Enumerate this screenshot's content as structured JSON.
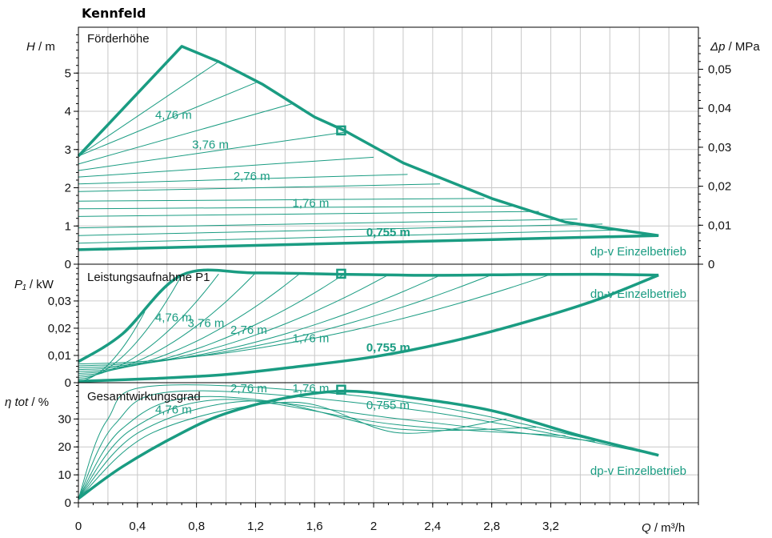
{
  "title": "Kennfeld",
  "colors": {
    "curve": "#1a9c82",
    "axis": "#000000",
    "grid": "#c8c8c8"
  },
  "x_axis": {
    "label_var": "Q",
    "label_unit": " / m³/h",
    "ticks": [
      "0",
      "0,4",
      "0,8",
      "1,2",
      "1,6",
      "2",
      "2,4",
      "2,8",
      "3,2"
    ],
    "range": [
      0,
      4.2
    ]
  },
  "chart_data": [
    {
      "type": "line",
      "panel": "head",
      "panel_title": "Förderhöhe",
      "ylabel_var": "H",
      "ylabel_unit": " / m",
      "y2label_var": "Δp",
      "y2label_unit": " / MPa",
      "ylim": [
        0,
        6.2
      ],
      "yticks": [
        "0",
        "1",
        "2",
        "3",
        "4",
        "5"
      ],
      "y2ticks": [
        "0",
        "0,01",
        "0,02",
        "0,03",
        "0,04",
        "0,05"
      ],
      "max_curve": {
        "x": [
          0,
          0.7,
          0.95,
          1.25,
          1.6,
          1.8,
          2.2,
          2.8,
          3.3,
          3.93
        ],
        "y": [
          2.83,
          5.7,
          5.3,
          4.7,
          3.85,
          3.5,
          2.65,
          1.72,
          1.1,
          0.75
        ]
      },
      "min_curve": {
        "x": [
          0,
          3.93
        ],
        "y": [
          0.38,
          0.75
        ]
      },
      "control_lines": [
        {
          "y0": 0.38,
          "x1": 3.93,
          "y1": 0.75
        },
        {
          "y0": 0.55,
          "x1": 3.72,
          "y1": 0.9
        },
        {
          "y0": 0.75,
          "x1": 3.55,
          "y1": 1.05
        },
        {
          "y0": 0.95,
          "x1": 3.38,
          "y1": 1.18
        },
        {
          "y0": 1.25,
          "x1": 3.12,
          "y1": 1.38
        },
        {
          "y0": 1.45,
          "x1": 2.95,
          "y1": 1.52
        },
        {
          "y0": 1.65,
          "x1": 2.75,
          "y1": 1.72
        },
        {
          "y0": 1.9,
          "x1": 2.45,
          "y1": 2.1
        },
        {
          "y0": 2.1,
          "x1": 2.23,
          "y1": 2.35
        },
        {
          "y0": 2.28,
          "x1": 2.0,
          "y1": 2.8
        },
        {
          "y0": 2.45,
          "x1": 1.8,
          "y1": 3.45
        },
        {
          "y0": 2.62,
          "x1": 1.45,
          "y1": 4.2
        },
        {
          "y0": 2.83,
          "x1": 1.22,
          "y1": 4.78
        },
        {
          "y0": 2.83,
          "x1": 0.95,
          "y1": 5.3
        }
      ],
      "curve_labels": [
        {
          "text": "4,76 m",
          "x": 0.52,
          "y": 3.8
        },
        {
          "text": "3,76 m",
          "x": 0.77,
          "y": 3.03
        },
        {
          "text": "2,76 m",
          "x": 1.05,
          "y": 2.2
        },
        {
          "text": "1,76 m",
          "x": 1.45,
          "y": 1.5
        },
        {
          "text": "0,755 m",
          "x": 1.95,
          "y": 0.73,
          "bold": true
        }
      ],
      "mode_label": "dp-v Einzelbetrieb",
      "operating_point": {
        "x": 1.78,
        "y": 3.5
      }
    },
    {
      "type": "line",
      "panel": "power",
      "panel_title": "Leistungsaufnahme P1",
      "ylabel_var": "P₁",
      "ylabel_unit": " / kW",
      "ylim": [
        0,
        0.0435
      ],
      "yticks": [
        "0",
        "0,01",
        "0,02",
        "0,03"
      ],
      "max_curve": {
        "x": [
          0,
          0.3,
          0.7,
          1.2,
          1.8,
          2.4,
          3.0,
          3.5,
          3.93
        ],
        "y": [
          0.0077,
          0.018,
          0.0395,
          0.0403,
          0.0398,
          0.0394,
          0.0397,
          0.0398,
          0.0395
        ]
      },
      "min_curve": {
        "x": [
          0,
          0.5,
          1.0,
          1.5,
          2.0,
          2.5,
          3.0,
          3.5,
          3.93
        ],
        "y": [
          0.0005,
          0.0015,
          0.003,
          0.006,
          0.0095,
          0.0148,
          0.0218,
          0.0302,
          0.0395
        ]
      },
      "curve_labels": [
        {
          "text": "4,76 m",
          "x": 0.52,
          "y": 0.0225
        },
        {
          "text": "3,76 m",
          "x": 0.74,
          "y": 0.0205
        },
        {
          "text": "2,76 m",
          "x": 1.03,
          "y": 0.018
        },
        {
          "text": "1,76 m",
          "x": 1.45,
          "y": 0.0148
        },
        {
          "text": "0,755 m",
          "x": 1.95,
          "y": 0.0115,
          "bold": true
        }
      ],
      "mode_label": "dp-v Einzelbetrieb",
      "operating_point": {
        "x": 1.78,
        "y": 0.04
      }
    },
    {
      "type": "line",
      "panel": "efficiency",
      "panel_title": "Gesamtwirkungsgrad",
      "ylabel_var": "η tot",
      "ylabel_unit": " / %",
      "ylim": [
        0,
        43
      ],
      "yticks": [
        "0",
        "10",
        "20",
        "30"
      ],
      "max_curve": {
        "x": [
          0,
          0.3,
          0.7,
          1.0,
          1.4,
          1.8,
          2.2,
          2.8,
          3.4,
          3.93
        ],
        "y": [
          1.5,
          13,
          25,
          32,
          37.5,
          40,
          38,
          33,
          24,
          17
        ]
      },
      "curve_labels": [
        {
          "text": "4,76 m",
          "x": 0.52,
          "y": 32
        },
        {
          "text": "2,76 m",
          "x": 1.03,
          "y": 39.5
        },
        {
          "text": "1,76 m",
          "x": 1.45,
          "y": 39.5
        },
        {
          "text": "0,755 m",
          "x": 1.95,
          "y": 33.5
        }
      ],
      "mode_label": "dp-v Einzelbetrieb",
      "operating_point": {
        "x": 1.78,
        "y": 40.5
      }
    }
  ]
}
